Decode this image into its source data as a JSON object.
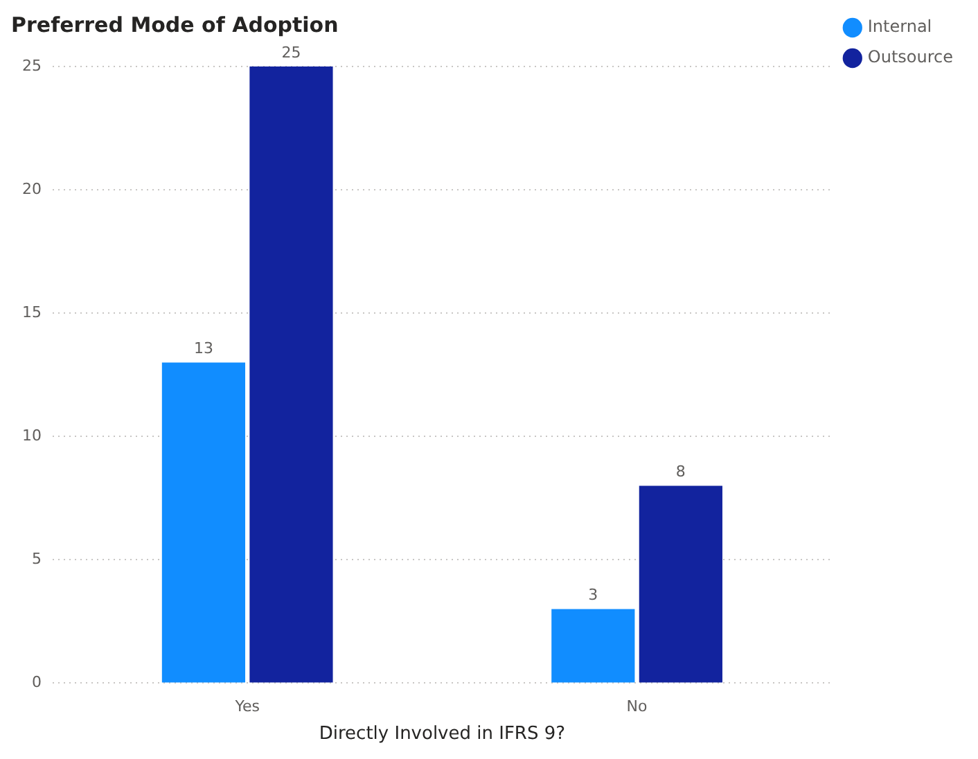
{
  "chart_data": {
    "type": "bar",
    "title": "Preferred Mode of Adoption",
    "xlabel": "Directly Involved in IFRS 9?",
    "categories": [
      "Yes",
      "No"
    ],
    "series": [
      {
        "name": "Internal",
        "color": "#118dff",
        "values": [
          13,
          3
        ]
      },
      {
        "name": "Outsource",
        "color": "#12239e",
        "values": [
          25,
          8
        ]
      }
    ],
    "ylim": [
      0,
      25
    ],
    "yticks": [
      0,
      5,
      10,
      15,
      20,
      25
    ],
    "grid": "y",
    "legend": "top right",
    "data_labels": true
  }
}
